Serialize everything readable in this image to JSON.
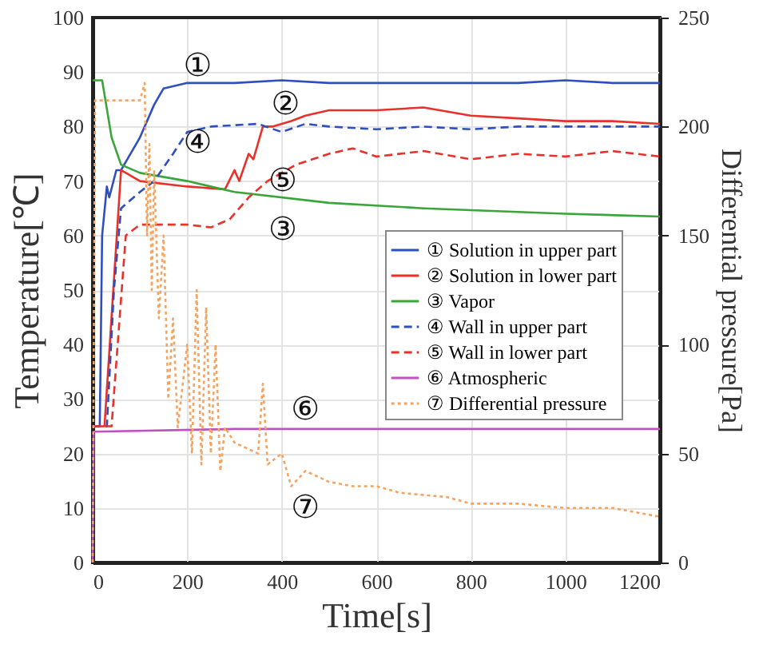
{
  "chart_data": {
    "type": "line",
    "xlabel": "Time[s]",
    "ylabel": "Temperature[℃]",
    "y2label": "Differential  pressure[Pa]",
    "xlim": [
      0,
      1200
    ],
    "xticks": [
      0,
      200,
      400,
      600,
      800,
      {
        "value": 1000,
        "label": "1000"
      },
      {
        "value": 1200,
        "label": "1200"
      }
    ],
    "ylim": [
      0,
      100
    ],
    "yticks": [
      0,
      10,
      20,
      30,
      40,
      50,
      60,
      70,
      80,
      90,
      100
    ],
    "y2lim": [
      0,
      250
    ],
    "y2ticks": [
      0,
      50,
      100,
      150,
      200,
      250
    ],
    "grid": true,
    "legend": "right",
    "marker": "none",
    "series": [
      {
        "name": "① Solution in upper part",
        "color": "#2f4fbf",
        "line_style": "solid",
        "x": [
          0,
          15,
          20,
          30,
          35,
          50,
          60,
          100,
          130,
          150,
          200,
          300,
          400,
          500,
          600,
          700,
          800,
          900,
          1000,
          1100,
          1200
        ],
        "values": [
          25,
          25,
          60,
          69,
          67,
          72,
          72,
          78,
          84,
          87,
          88,
          88,
          88.5,
          88,
          88,
          88,
          88,
          88,
          88.5,
          88,
          88
        ]
      },
      {
        "name": "② Solution in lower part",
        "color": "#e8312a",
        "line_style": "solid",
        "x": [
          0,
          25,
          60,
          100,
          200,
          280,
          300,
          310,
          330,
          340,
          360,
          380,
          420,
          450,
          500,
          600,
          700,
          800,
          900,
          1000,
          1100,
          1200
        ],
        "values": [
          25,
          25,
          72,
          70,
          69,
          68.5,
          72,
          70,
          75,
          74,
          80,
          80,
          81,
          82,
          83,
          83,
          83.5,
          82,
          81.5,
          81,
          81,
          80.5
        ]
      },
      {
        "name": "③ Vapor",
        "color": "#3aa53a",
        "line_style": "solid",
        "x": [
          0,
          20,
          40,
          60,
          100,
          200,
          300,
          500,
          700,
          1000,
          1200
        ],
        "values": [
          88.5,
          88.5,
          78,
          73,
          71.5,
          70,
          68,
          66,
          65,
          64,
          63.5
        ]
      },
      {
        "name": "④ Wall in upper part",
        "color": "#2f4fbf",
        "line_style": "dashed",
        "x": [
          0,
          30,
          45,
          60,
          100,
          130,
          170,
          200,
          250,
          350,
          400,
          450,
          500,
          600,
          700,
          800,
          900,
          1000,
          1100,
          1200
        ],
        "values": [
          25,
          25,
          50,
          65,
          68,
          70,
          75,
          79,
          80,
          80.5,
          79,
          80.5,
          80,
          79.5,
          80,
          79.5,
          80,
          80,
          80,
          80
        ]
      },
      {
        "name": "⑤ Wall in lower part",
        "color": "#e8312a",
        "line_style": "dashed",
        "x": [
          0,
          40,
          70,
          100,
          200,
          250,
          290,
          330,
          370,
          430,
          500,
          550,
          600,
          700,
          800,
          900,
          1000,
          1100,
          1200
        ],
        "values": [
          25,
          25,
          60,
          62,
          62,
          61.5,
          63,
          67,
          70,
          73,
          75,
          76,
          74.5,
          75.5,
          74,
          75,
          74.5,
          75.5,
          74.5
        ]
      },
      {
        "name": "⑥ Atmospheric",
        "color": "#c050c0",
        "line_style": "solid",
        "x": [
          0,
          2,
          300,
          600,
          900,
          1200
        ],
        "values": [
          0,
          24,
          24.5,
          24.5,
          24.5,
          24.5
        ]
      },
      {
        "name": "⑦ Differential pressure",
        "color": "#f4a460",
        "line_style": "dotted",
        "axis": "y2",
        "x": [
          0,
          5,
          100,
          110,
          115,
          120,
          125,
          130,
          140,
          150,
          160,
          170,
          180,
          200,
          210,
          220,
          230,
          240,
          250,
          260,
          270,
          280,
          300,
          350,
          360,
          370,
          400,
          420,
          450,
          500,
          550,
          600,
          650,
          700,
          750,
          800,
          900,
          1000,
          1100,
          1200
        ],
        "values": [
          0,
          212,
          212,
          220,
          150,
          192,
          125,
          180,
          112,
          150,
          75,
          112,
          62,
          100,
          50,
          125,
          45,
          117,
          50,
          100,
          42,
          62,
          55,
          50,
          82,
          45,
          50,
          35,
          42,
          37,
          35,
          35,
          32,
          31,
          30,
          27,
          27,
          25,
          25,
          21
        ]
      }
    ],
    "annotations": [
      "①",
      "②",
      "③",
      "④",
      "⑤",
      "⑥",
      "⑦"
    ]
  }
}
